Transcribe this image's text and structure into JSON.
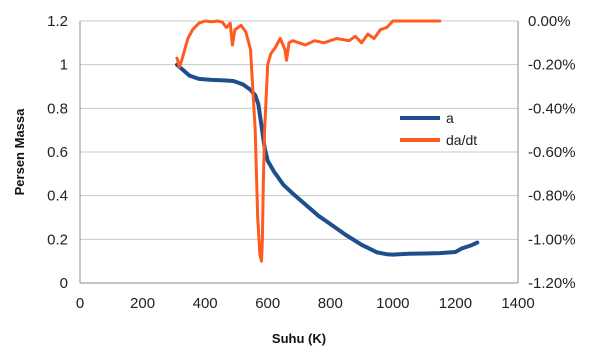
{
  "chart_data": {
    "type": "line",
    "xlabel": "Suhu (K)",
    "ylabel": "Persen Massa",
    "y2label": "",
    "xlim": [
      0,
      1400
    ],
    "ylim": [
      0,
      1.2
    ],
    "y2lim": [
      -1.2,
      0.0
    ],
    "x_ticks": [
      "0",
      "200",
      "400",
      "600",
      "800",
      "1000",
      "1200",
      "1400"
    ],
    "y_ticks": [
      "0",
      "0.2",
      "0.4",
      "0.6",
      "0.8",
      "1",
      "1.2"
    ],
    "y2_ticks": [
      "-1.20%",
      "-1.00%",
      "-0.80%",
      "-0.60%",
      "-0.40%",
      "-0.20%",
      "0.00%"
    ],
    "grid": true,
    "legend_position": "right",
    "series": [
      {
        "name": "a",
        "axis": "left",
        "color": "#1f4e8c",
        "x": [
          310,
          330,
          350,
          380,
          420,
          460,
          490,
          520,
          545,
          560,
          570,
          580,
          590,
          600,
          620,
          650,
          680,
          720,
          760,
          800,
          850,
          900,
          950,
          980,
          1000,
          1020,
          1050,
          1100,
          1150,
          1200,
          1220,
          1250,
          1270
        ],
        "y": [
          1.0,
          0.975,
          0.95,
          0.935,
          0.93,
          0.928,
          0.925,
          0.91,
          0.885,
          0.86,
          0.82,
          0.72,
          0.62,
          0.56,
          0.51,
          0.45,
          0.41,
          0.36,
          0.31,
          0.27,
          0.22,
          0.175,
          0.14,
          0.132,
          0.13,
          0.132,
          0.134,
          0.135,
          0.137,
          0.142,
          0.158,
          0.172,
          0.185
        ]
      },
      {
        "name": "da/dt",
        "axis": "right",
        "color": "#ff5a1f",
        "x": [
          310,
          318,
          325,
          335,
          345,
          360,
          380,
          400,
          420,
          440,
          455,
          468,
          480,
          487,
          495,
          505,
          515,
          530,
          545,
          560,
          568,
          575,
          580,
          583,
          586,
          590,
          600,
          610,
          625,
          640,
          655,
          660,
          668,
          680,
          700,
          720,
          750,
          780,
          820,
          860,
          880,
          900,
          920,
          940,
          960,
          980,
          1000,
          1050,
          1100,
          1150
        ],
        "y": [
          -0.17,
          -0.21,
          -0.18,
          -0.13,
          -0.08,
          -0.04,
          -0.01,
          0.0,
          -0.003,
          0.0,
          -0.005,
          -0.03,
          -0.01,
          -0.11,
          -0.04,
          -0.03,
          -0.02,
          -0.05,
          -0.13,
          -0.5,
          -0.9,
          -1.07,
          -1.1,
          -1.0,
          -0.75,
          -0.5,
          -0.2,
          -0.15,
          -0.12,
          -0.08,
          -0.13,
          -0.18,
          -0.1,
          -0.09,
          -0.1,
          -0.11,
          -0.09,
          -0.1,
          -0.08,
          -0.09,
          -0.07,
          -0.1,
          -0.06,
          -0.08,
          -0.04,
          -0.03,
          0.0,
          0.0,
          0.0,
          0.0
        ]
      }
    ]
  }
}
